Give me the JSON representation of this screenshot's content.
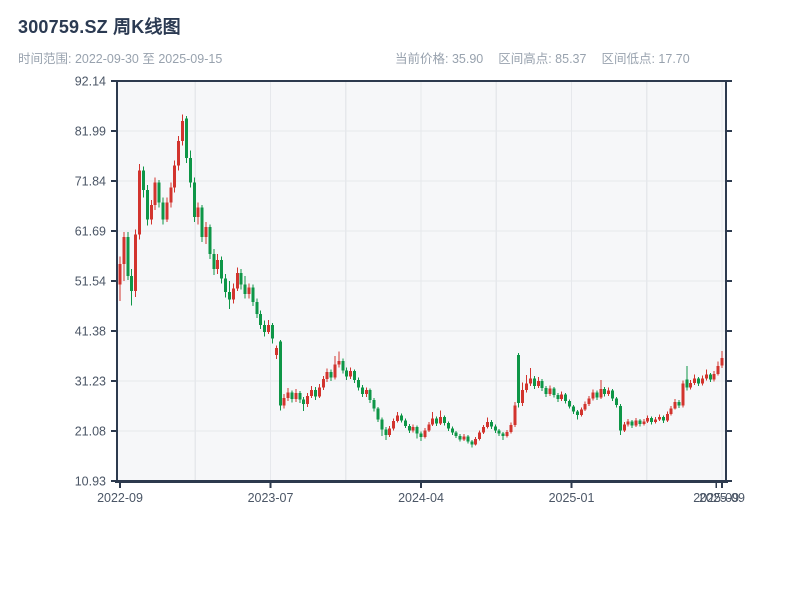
{
  "header": {
    "title": "300759.SZ 周K线图",
    "time_range": "时间范围: 2022-09-30 至 2025-09-15",
    "stats": {
      "current": "当前价格: 35.90",
      "high": "区间高点: 85.37",
      "low": "区间低点: 17.70"
    }
  },
  "chart_data": {
    "type": "candlestick",
    "title": "300759.SZ 周K线图",
    "xlabel": "",
    "ylabel": "",
    "ylim": [
      10.93,
      92.14
    ],
    "grid": true,
    "legend": "none",
    "up_color": "#d2342e",
    "down_color": "#0e9647",
    "plot_bg": "#f6f7f9",
    "grid_color": "#e6e8ec",
    "spine_color": "#2d3a4e",
    "tick_label_color": "#4b5666",
    "y_ticks": [
      {
        "value": 92.14,
        "label": "92.14"
      },
      {
        "value": 81.99,
        "label": "81.99"
      },
      {
        "value": 71.84,
        "label": "71.84"
      },
      {
        "value": 61.69,
        "label": "61.69"
      },
      {
        "value": 51.54,
        "label": "51.54"
      },
      {
        "value": 41.38,
        "label": "41.38"
      },
      {
        "value": 31.23,
        "label": "31.23"
      },
      {
        "value": 21.08,
        "label": "21.08"
      },
      {
        "value": 10.93,
        "label": "10.93"
      }
    ],
    "x_ticks": [
      {
        "week": 0,
        "label": "2022-09"
      },
      {
        "week": 38.5,
        "label": "2023-07"
      },
      {
        "week": 77.0,
        "label": "2024-04"
      },
      {
        "week": 115.5,
        "label": "2025-01"
      },
      {
        "week": 152.5,
        "label": "2025-09"
      },
      {
        "week": 154,
        "label": "2025-09"
      }
    ],
    "x_grid_weeks": [
      19.25,
      38.5,
      57.75,
      77.0,
      96.25,
      115.5,
      134.75,
      154
    ],
    "stats": {
      "current_price": 35.9,
      "range_high": 85.37,
      "range_low": 17.7
    },
    "ohlc": [
      [
        50.8,
        56.5,
        47.5,
        55.0
      ],
      [
        55.0,
        61.5,
        51.5,
        60.5
      ],
      [
        60.5,
        61.5,
        51.7,
        52.5
      ],
      [
        52.5,
        54.0,
        46.6,
        49.5
      ],
      [
        49.5,
        62.0,
        48.3,
        61.0
      ],
      [
        61.0,
        75.3,
        60.0,
        74.0
      ],
      [
        74.0,
        74.8,
        68.5,
        70.0
      ],
      [
        70.0,
        71.0,
        62.8,
        64.0
      ],
      [
        64.0,
        68.0,
        63.0,
        67.0
      ],
      [
        67.0,
        72.5,
        66.0,
        71.5
      ],
      [
        71.5,
        72.0,
        66.5,
        67.5
      ],
      [
        67.5,
        68.5,
        63.0,
        64.0
      ],
      [
        64.0,
        68.5,
        63.5,
        67.5
      ],
      [
        67.5,
        71.5,
        66.5,
        70.5
      ],
      [
        70.5,
        76.0,
        69.5,
        75.0
      ],
      [
        75.0,
        81.0,
        74.0,
        80.0
      ],
      [
        80.0,
        85.37,
        79.0,
        84.0
      ],
      [
        84.5,
        85.0,
        75.5,
        76.5
      ],
      [
        76.5,
        78.0,
        70.5,
        71.5
      ],
      [
        71.5,
        72.5,
        63.5,
        64.5
      ],
      [
        64.5,
        67.5,
        63.0,
        66.5
      ],
      [
        66.5,
        67.0,
        59.5,
        60.5
      ],
      [
        60.5,
        63.5,
        59.0,
        62.5
      ],
      [
        62.5,
        63.0,
        56.0,
        57.0
      ],
      [
        57.0,
        58.0,
        52.8,
        54.0
      ],
      [
        54.0,
        57.0,
        53.0,
        55.8
      ],
      [
        55.8,
        56.5,
        51.0,
        52.0
      ],
      [
        52.0,
        53.0,
        48.2,
        49.3
      ],
      [
        49.3,
        51.5,
        45.8,
        47.8
      ],
      [
        47.8,
        51.0,
        47.0,
        50.0
      ],
      [
        50.0,
        54.3,
        49.5,
        53.2
      ],
      [
        53.2,
        54.0,
        49.8,
        50.8
      ],
      [
        50.8,
        52.5,
        48.0,
        48.9
      ],
      [
        48.9,
        51.0,
        48.0,
        50.2
      ],
      [
        50.2,
        50.8,
        46.5,
        47.3
      ],
      [
        47.3,
        48.0,
        44.0,
        44.8
      ],
      [
        44.8,
        45.5,
        41.8,
        42.6
      ],
      [
        42.6,
        43.5,
        40.3,
        41.2
      ],
      [
        41.2,
        43.6,
        40.8,
        42.6
      ],
      [
        42.6,
        43.0,
        38.8,
        39.9
      ],
      [
        36.5,
        38.4,
        35.7,
        37.9
      ],
      [
        39.3,
        39.6,
        25.2,
        26.3
      ],
      [
        26.3,
        28.6,
        25.6,
        27.8
      ],
      [
        27.8,
        29.8,
        27.2,
        28.9
      ],
      [
        28.9,
        29.3,
        26.9,
        27.6
      ],
      [
        27.6,
        29.6,
        27.0,
        28.8
      ],
      [
        28.8,
        29.2,
        26.8,
        27.5
      ],
      [
        27.5,
        28.0,
        25.1,
        26.6
      ],
      [
        26.6,
        28.8,
        26.0,
        28.2
      ],
      [
        28.2,
        30.2,
        27.8,
        29.4
      ],
      [
        29.4,
        30.0,
        27.4,
        28.1
      ],
      [
        28.1,
        30.6,
        27.8,
        29.9
      ],
      [
        29.9,
        32.2,
        29.4,
        31.6
      ],
      [
        31.6,
        33.8,
        31.0,
        33.1
      ],
      [
        33.1,
        33.6,
        31.2,
        31.9
      ],
      [
        31.9,
        36.3,
        31.5,
        34.6
      ],
      [
        34.6,
        37.2,
        34.0,
        35.3
      ],
      [
        35.3,
        35.8,
        32.8,
        33.4
      ],
      [
        33.4,
        34.0,
        31.4,
        32.1
      ],
      [
        32.1,
        34.0,
        31.6,
        33.3
      ],
      [
        33.3,
        33.6,
        30.8,
        31.4
      ],
      [
        31.4,
        31.9,
        29.3,
        29.9
      ],
      [
        29.9,
        30.4,
        28.0,
        28.6
      ],
      [
        28.6,
        29.9,
        28.0,
        29.4
      ],
      [
        29.4,
        29.7,
        26.8,
        27.4
      ],
      [
        27.4,
        27.8,
        25.0,
        25.6
      ],
      [
        25.6,
        26.0,
        22.9,
        23.4
      ],
      [
        23.4,
        23.8,
        20.1,
        21.4
      ],
      [
        21.4,
        21.9,
        19.3,
        20.3
      ],
      [
        20.3,
        22.1,
        19.9,
        21.6
      ],
      [
        21.6,
        23.6,
        21.2,
        23.1
      ],
      [
        23.1,
        24.9,
        22.8,
        24.2
      ],
      [
        24.2,
        24.6,
        22.8,
        23.2
      ],
      [
        23.2,
        23.6,
        21.7,
        22.1
      ],
      [
        22.1,
        22.5,
        20.7,
        21.2
      ],
      [
        21.2,
        22.4,
        20.8,
        21.9
      ],
      [
        21.9,
        22.2,
        19.6,
        20.6
      ],
      [
        20.6,
        21.0,
        19.1,
        19.9
      ],
      [
        19.9,
        21.7,
        19.6,
        21.2
      ],
      [
        21.2,
        22.9,
        20.9,
        22.4
      ],
      [
        22.4,
        24.9,
        22.1,
        23.6
      ],
      [
        23.6,
        24.0,
        22.1,
        22.6
      ],
      [
        22.6,
        25.2,
        22.3,
        23.9
      ],
      [
        23.9,
        24.2,
        22.2,
        22.7
      ],
      [
        22.7,
        23.0,
        21.1,
        21.6
      ],
      [
        21.6,
        22.0,
        20.3,
        20.8
      ],
      [
        20.8,
        21.1,
        19.7,
        20.1
      ],
      [
        20.1,
        20.5,
        18.9,
        19.4
      ],
      [
        19.4,
        20.5,
        19.1,
        20.0
      ],
      [
        20.0,
        20.3,
        18.5,
        19.0
      ],
      [
        19.0,
        19.3,
        17.7,
        18.3
      ],
      [
        18.3,
        19.9,
        18.1,
        19.5
      ],
      [
        19.5,
        21.2,
        19.2,
        20.8
      ],
      [
        20.8,
        22.3,
        20.5,
        21.9
      ],
      [
        21.9,
        23.8,
        21.6,
        22.9
      ],
      [
        22.9,
        23.3,
        21.5,
        22.0
      ],
      [
        22.0,
        22.4,
        20.7,
        21.2
      ],
      [
        21.2,
        21.5,
        20.1,
        20.6
      ],
      [
        20.6,
        20.9,
        19.3,
        20.1
      ],
      [
        20.1,
        21.3,
        19.8,
        20.9
      ],
      [
        20.9,
        22.8,
        20.6,
        22.3
      ],
      [
        22.3,
        27.0,
        21.9,
        26.3
      ],
      [
        36.5,
        36.9,
        25.9,
        26.8
      ],
      [
        26.8,
        30.9,
        26.2,
        29.4
      ],
      [
        29.4,
        32.4,
        28.9,
        30.7
      ],
      [
        30.7,
        33.9,
        30.2,
        31.7
      ],
      [
        31.7,
        32.2,
        29.6,
        30.2
      ],
      [
        30.2,
        32.0,
        29.8,
        31.2
      ],
      [
        31.2,
        31.6,
        29.2,
        29.8
      ],
      [
        29.8,
        30.2,
        28.0,
        28.6
      ],
      [
        28.6,
        30.3,
        28.2,
        29.7
      ],
      [
        29.7,
        30.0,
        27.9,
        28.4
      ],
      [
        28.4,
        28.8,
        27.0,
        27.6
      ],
      [
        27.6,
        29.1,
        27.2,
        28.5
      ],
      [
        28.5,
        28.8,
        26.7,
        27.2
      ],
      [
        27.2,
        27.5,
        25.6,
        26.1
      ],
      [
        26.1,
        26.4,
        24.5,
        25.0
      ],
      [
        25.0,
        25.3,
        23.4,
        24.3
      ],
      [
        24.3,
        25.9,
        24.0,
        25.4
      ],
      [
        25.4,
        27.1,
        25.1,
        26.6
      ],
      [
        26.6,
        28.2,
        26.2,
        27.7
      ],
      [
        27.7,
        29.5,
        27.3,
        28.9
      ],
      [
        28.9,
        29.3,
        27.4,
        27.9
      ],
      [
        27.9,
        31.4,
        27.6,
        29.6
      ],
      [
        29.6,
        30.0,
        28.1,
        28.6
      ],
      [
        28.6,
        29.9,
        28.2,
        29.3
      ],
      [
        29.3,
        29.6,
        27.2,
        27.7
      ],
      [
        27.7,
        28.0,
        25.9,
        26.4
      ],
      [
        26.2,
        26.6,
        20.3,
        21.2
      ],
      [
        21.2,
        22.9,
        20.9,
        22.4
      ],
      [
        22.4,
        23.5,
        22.0,
        23.0
      ],
      [
        23.0,
        23.3,
        21.7,
        22.2
      ],
      [
        22.2,
        23.7,
        21.9,
        23.2
      ],
      [
        23.2,
        23.5,
        22.0,
        22.5
      ],
      [
        22.5,
        23.5,
        22.2,
        23.0
      ],
      [
        23.0,
        24.2,
        22.7,
        23.7
      ],
      [
        23.7,
        24.0,
        22.4,
        22.9
      ],
      [
        22.9,
        23.9,
        22.6,
        23.4
      ],
      [
        23.4,
        24.4,
        23.1,
        23.9
      ],
      [
        23.9,
        24.2,
        22.7,
        23.2
      ],
      [
        23.2,
        25.0,
        22.9,
        24.5
      ],
      [
        24.5,
        26.2,
        24.2,
        25.7
      ],
      [
        25.7,
        27.6,
        25.4,
        27.0
      ],
      [
        27.0,
        27.4,
        25.8,
        26.3
      ],
      [
        26.3,
        31.3,
        25.9,
        30.7
      ],
      [
        31.5,
        34.3,
        29.3,
        29.9
      ],
      [
        29.9,
        31.4,
        29.5,
        30.8
      ],
      [
        30.8,
        32.6,
        30.4,
        31.7
      ],
      [
        31.7,
        32.0,
        30.2,
        30.7
      ],
      [
        30.7,
        32.3,
        30.3,
        31.7
      ],
      [
        31.7,
        33.6,
        31.3,
        32.6
      ],
      [
        32.6,
        32.9,
        31.0,
        31.5
      ],
      [
        31.5,
        33.3,
        31.1,
        32.7
      ],
      [
        32.7,
        35.2,
        32.3,
        34.3
      ],
      [
        34.4,
        37.3,
        33.9,
        35.9
      ]
    ]
  }
}
